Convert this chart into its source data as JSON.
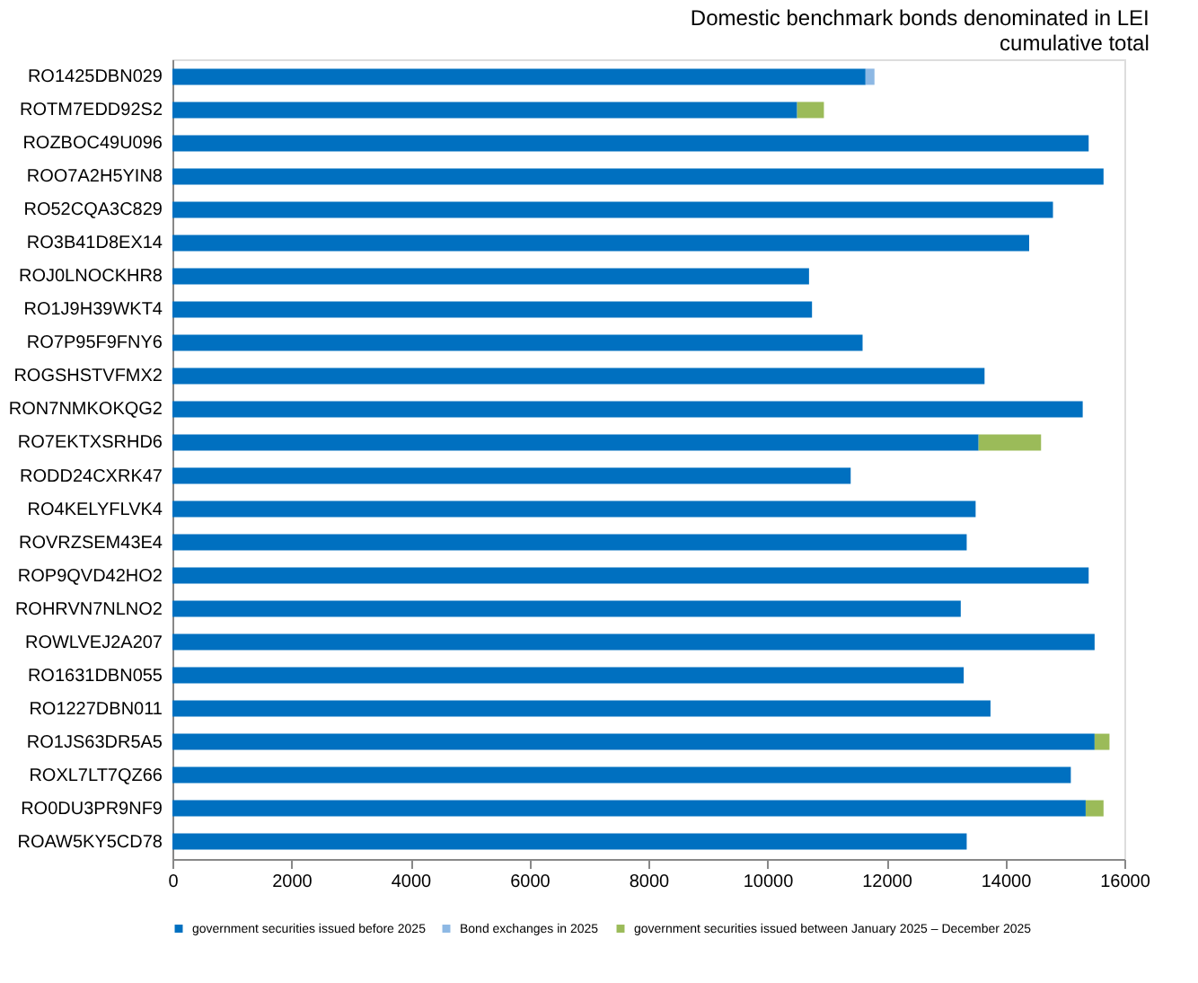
{
  "chart_data": {
    "type": "bar",
    "orientation": "horizontal",
    "stacked": true,
    "title": [
      "Domestic benchmark bonds denominated in LEI",
      "cumulative total"
    ],
    "categories": [
      "RO1425DBN029",
      "ROTM7EDD92S2",
      "ROZBOC49U096",
      "ROO7A2H5YIN8",
      "RO52CQA3C829",
      "RO3B41D8EX14",
      "ROJ0LNOCKHR8",
      "RO1J9H39WKT4",
      "RO7P95F9FNY6",
      "ROGSHSTVFMX2",
      "RON7NMKOKQG2",
      "RO7EKTXSRHD6",
      "RODD24CXRK47",
      "RO4KELYFLVK4",
      "ROVRZSEM43E4",
      "ROP9QVD42HO2",
      "ROHRVN7NLNO2",
      "ROWLVEJ2A207",
      "RO1631DBN055",
      "RO1227DBN011",
      "RO1JS63DR5A5",
      "ROXL7LT7QZ66",
      "RO0DU3PR9NF9",
      "ROAW5KY5CD78"
    ],
    "series": [
      {
        "name": "government securities issued before 2025",
        "color": "#0070c0",
        "values": [
          11650,
          10500,
          15400,
          15650,
          14800,
          14400,
          10700,
          10750,
          11600,
          13650,
          15300,
          13550,
          11400,
          13500,
          13350,
          15400,
          13250,
          15500,
          13300,
          13750,
          15500,
          15100,
          15350,
          13350
        ]
      },
      {
        "name": "Bond exchanges in 2025",
        "color": "#8db8e4",
        "values": [
          150,
          0,
          0,
          0,
          0,
          0,
          0,
          0,
          0,
          0,
          0,
          0,
          0,
          0,
          0,
          0,
          0,
          0,
          0,
          0,
          0,
          0,
          0,
          0
        ]
      },
      {
        "name": "government securities issued between January 2025 – December 2025",
        "color": "#9bbb59",
        "values": [
          0,
          450,
          0,
          0,
          0,
          0,
          0,
          0,
          0,
          0,
          0,
          1050,
          0,
          0,
          0,
          0,
          0,
          0,
          0,
          0,
          250,
          0,
          300,
          0
        ]
      }
    ],
    "xlim": [
      0,
      16000
    ],
    "xticks": [
      0,
      2000,
      4000,
      6000,
      8000,
      10000,
      12000,
      14000,
      16000
    ],
    "legend": "bottom",
    "grid": false
  }
}
